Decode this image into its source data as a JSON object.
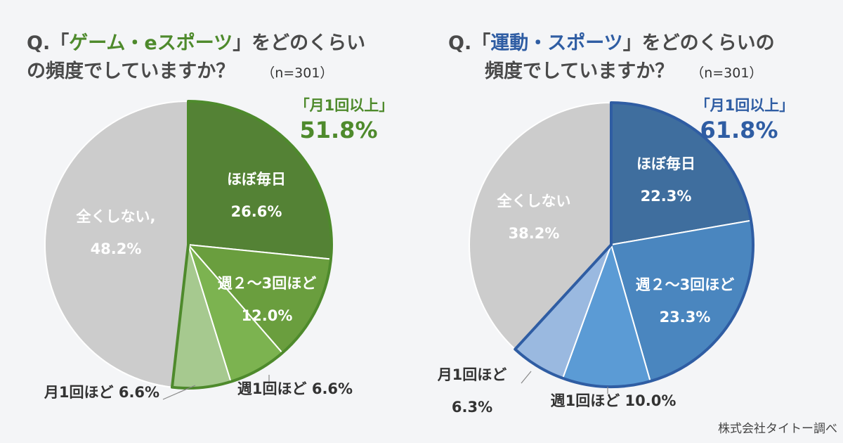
{
  "charts": [
    {
      "title_prefix": "Q.「",
      "title_topic": "ゲーム・eスポーツ",
      "title_suffix": "」をどのくらい",
      "title_line2": "の頻度でしていますか？",
      "n_label": "（n=301）",
      "callout_label": "「月1回以上」",
      "callout_value": "51.8%",
      "accent_color": "#4e8a2c"
    },
    {
      "title_prefix": "Q.「",
      "title_topic": "運動・スポーツ",
      "title_suffix": "」をどのくらいの",
      "title_line2": "頻度でしていますか？",
      "n_label": "（n=301）",
      "callout_label": "「月1回以上」",
      "callout_value": "61.8%",
      "accent_color": "#2f5da3"
    }
  ],
  "chart_data": [
    {
      "type": "pie",
      "categories": [
        "ほぼ毎日",
        "週２～3回ほど",
        "週1回ほど",
        "月1回ほど",
        "全くしない"
      ],
      "values": [
        26.6,
        12.0,
        6.6,
        6.6,
        48.2
      ],
      "labels": [
        [
          "ほぼ毎日",
          "26.6%"
        ],
        [
          "週２～3回ほど",
          "12.0%"
        ],
        [
          "週1回ほど 6.6%"
        ],
        [
          "月1回ほど 6.6%"
        ],
        [
          "全くしない,",
          "48.2%"
        ]
      ],
      "colors": [
        "#548235",
        "#6a9e3e",
        "#7cb350",
        "#a6c98f",
        "#cccccc"
      ],
      "label_colors": [
        "#ffffff",
        "#ffffff",
        "#333333",
        "#333333",
        "#ffffff"
      ],
      "outline_color": "#4e8a2c"
    },
    {
      "type": "pie",
      "categories": [
        "ほぼ毎日",
        "週２～3回ほど",
        "週1回ほど",
        "月1回ほど",
        "全くしない"
      ],
      "values": [
        22.3,
        23.3,
        10.0,
        6.3,
        38.2
      ],
      "labels": [
        [
          "ほぼ毎日",
          "22.3%"
        ],
        [
          "週２～3回ほど",
          "23.3%"
        ],
        [
          "週1回ほど 10.0%"
        ],
        [
          "月1回ほど",
          "6.3%"
        ],
        [
          "全くしない",
          "38.2%"
        ]
      ],
      "colors": [
        "#3f6e9e",
        "#4a86bf",
        "#5b9bd5",
        "#9ab9e0",
        "#cccccc"
      ],
      "label_colors": [
        "#ffffff",
        "#ffffff",
        "#333333",
        "#333333",
        "#ffffff"
      ],
      "outline_color": "#2f5da3"
    }
  ],
  "source": "株式会社タイトー調べ"
}
